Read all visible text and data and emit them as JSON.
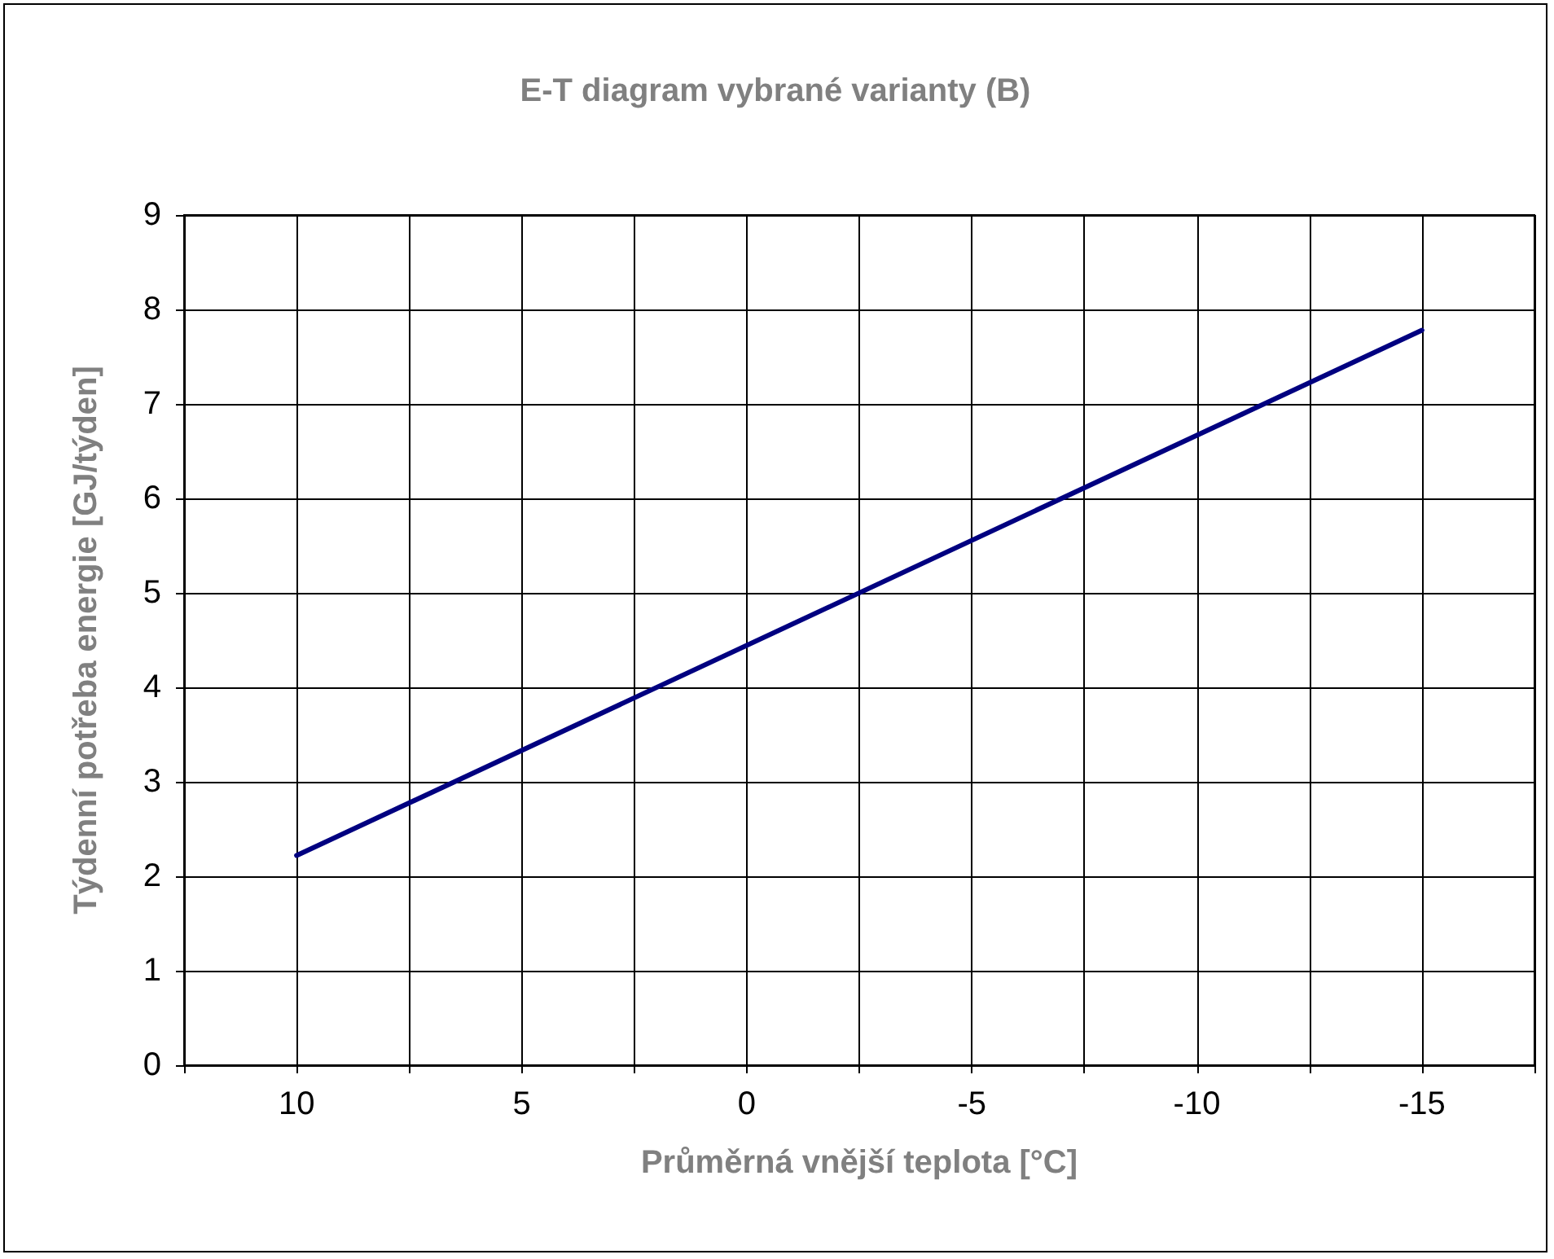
{
  "chart_data": {
    "type": "line",
    "title": "E-T diagram vybrané varianty (B)",
    "xlabel": "Průměrná vnější teplota [°C]",
    "ylabel": "Týdenní potřeba energie [GJ/týden]",
    "x": [
      10,
      -15
    ],
    "series": [
      {
        "color": "#000080",
        "values": [
          2.22,
          7.78
        ]
      }
    ],
    "xlim": [
      12.5,
      -17.5
    ],
    "xticks": [
      {
        "value": 12.5,
        "label": null
      },
      10,
      {
        "value": 7.5,
        "label": null
      },
      5,
      {
        "value": 2.5,
        "label": null
      },
      0,
      {
        "value": -2.5,
        "label": null
      },
      -5,
      {
        "value": -7.5,
        "label": null
      },
      -10,
      {
        "value": -12.5,
        "label": null
      },
      -15,
      {
        "value": -17.5,
        "label": null
      }
    ],
    "ylim": [
      0,
      9
    ],
    "yticks": [
      0,
      1,
      2,
      3,
      4,
      5,
      6,
      7,
      8,
      9
    ],
    "grid": true,
    "marker": "none",
    "line_style": "solid"
  }
}
